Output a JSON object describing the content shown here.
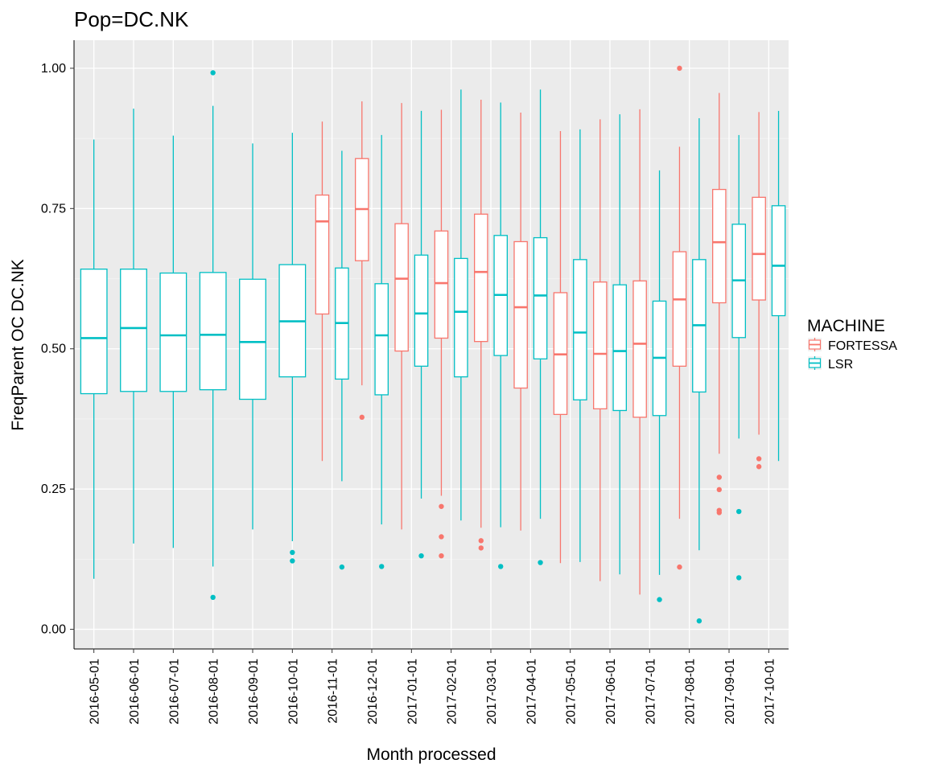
{
  "chart_data": {
    "type": "boxplot",
    "title": "Pop=DC.NK",
    "xlabel": "Month processed",
    "ylabel": "FreqParent OC  DC.NK",
    "ylim": [
      -0.035,
      1.05
    ],
    "yticks": [
      0.0,
      0.25,
      0.5,
      0.75,
      1.0
    ],
    "ytick_labels": [
      "0.00",
      "0.25",
      "0.50",
      "0.75",
      "1.00"
    ],
    "grid": true,
    "legend": {
      "title": "MACHINE",
      "position": "right",
      "entries": [
        {
          "name": "FORTESSA",
          "color": "#F8766D"
        },
        {
          "name": "LSR",
          "color": "#00BFC4"
        }
      ]
    },
    "categories": [
      "2016-05-01",
      "2016-06-01",
      "2016-07-01",
      "2016-08-01",
      "2016-09-01",
      "2016-10-01",
      "2016-11-01",
      "2016-12-01",
      "2017-01-01",
      "2017-02-01",
      "2017-03-01",
      "2017-04-01",
      "2017-05-01",
      "2017-06-01",
      "2017-07-01",
      "2017-08-01",
      "2017-09-01",
      "2017-10-01"
    ],
    "series": [
      {
        "name": "FORTESSA",
        "color": "#F8766D",
        "boxes": [
          {
            "category": "2016-11-01",
            "min": 0.3,
            "q1": 0.562,
            "median": 0.727,
            "q3": 0.774,
            "max": 0.905,
            "outliers": []
          },
          {
            "category": "2016-12-01",
            "min": 0.435,
            "q1": 0.657,
            "median": 0.749,
            "q3": 0.839,
            "max": 0.941,
            "outliers": [
              0.378
            ]
          },
          {
            "category": "2017-01-01",
            "min": 0.178,
            "q1": 0.496,
            "median": 0.625,
            "q3": 0.723,
            "max": 0.938,
            "outliers": []
          },
          {
            "category": "2017-02-01",
            "min": 0.238,
            "q1": 0.519,
            "median": 0.617,
            "q3": 0.71,
            "max": 0.926,
            "outliers": [
              0.219,
              0.165,
              0.131
            ]
          },
          {
            "category": "2017-03-01",
            "min": 0.181,
            "q1": 0.513,
            "median": 0.637,
            "q3": 0.74,
            "max": 0.944,
            "outliers": [
              0.158,
              0.145
            ]
          },
          {
            "category": "2017-04-01",
            "min": 0.176,
            "q1": 0.43,
            "median": 0.574,
            "q3": 0.691,
            "max": 0.921,
            "outliers": []
          },
          {
            "category": "2017-05-01",
            "min": 0.118,
            "q1": 0.383,
            "median": 0.49,
            "q3": 0.6,
            "max": 0.888,
            "outliers": []
          },
          {
            "category": "2017-06-01",
            "min": 0.086,
            "q1": 0.393,
            "median": 0.491,
            "q3": 0.619,
            "max": 0.909,
            "outliers": []
          },
          {
            "category": "2017-07-01",
            "min": 0.062,
            "q1": 0.378,
            "median": 0.509,
            "q3": 0.621,
            "max": 0.927,
            "outliers": []
          },
          {
            "category": "2017-08-01",
            "min": 0.197,
            "q1": 0.469,
            "median": 0.588,
            "q3": 0.673,
            "max": 0.86,
            "outliers": [
              1.0,
              0.111
            ]
          },
          {
            "category": "2017-09-01",
            "min": 0.313,
            "q1": 0.582,
            "median": 0.69,
            "q3": 0.784,
            "max": 0.956,
            "outliers": [
              0.271,
              0.249,
              0.212,
              0.208
            ]
          },
          {
            "category": "2017-10-01",
            "min": 0.347,
            "q1": 0.587,
            "median": 0.669,
            "q3": 0.77,
            "max": 0.922,
            "outliers": [
              0.304,
              0.29
            ]
          }
        ]
      },
      {
        "name": "LSR",
        "color": "#00BFC4",
        "boxes": [
          {
            "category": "2016-05-01",
            "min": 0.09,
            "q1": 0.42,
            "median": 0.519,
            "q3": 0.642,
            "max": 0.873,
            "outliers": []
          },
          {
            "category": "2016-06-01",
            "min": 0.153,
            "q1": 0.424,
            "median": 0.537,
            "q3": 0.642,
            "max": 0.928,
            "outliers": []
          },
          {
            "category": "2016-07-01",
            "min": 0.145,
            "q1": 0.424,
            "median": 0.524,
            "q3": 0.635,
            "max": 0.88,
            "outliers": []
          },
          {
            "category": "2016-08-01",
            "min": 0.112,
            "q1": 0.427,
            "median": 0.525,
            "q3": 0.636,
            "max": 0.933,
            "outliers": [
              0.992,
              0.057
            ]
          },
          {
            "category": "2016-09-01",
            "min": 0.178,
            "q1": 0.41,
            "median": 0.512,
            "q3": 0.624,
            "max": 0.866,
            "outliers": []
          },
          {
            "category": "2016-10-01",
            "min": 0.157,
            "q1": 0.45,
            "median": 0.549,
            "q3": 0.65,
            "max": 0.885,
            "outliers": [
              0.137,
              0.122
            ]
          },
          {
            "category": "2016-11-01",
            "min": 0.264,
            "q1": 0.446,
            "median": 0.546,
            "q3": 0.644,
            "max": 0.853,
            "outliers": [
              0.111
            ]
          },
          {
            "category": "2016-12-01",
            "min": 0.187,
            "q1": 0.418,
            "median": 0.524,
            "q3": 0.616,
            "max": 0.881,
            "outliers": [
              0.112
            ]
          },
          {
            "category": "2017-01-01",
            "min": 0.233,
            "q1": 0.469,
            "median": 0.563,
            "q3": 0.667,
            "max": 0.924,
            "outliers": [
              0.131
            ]
          },
          {
            "category": "2017-02-01",
            "min": 0.194,
            "q1": 0.45,
            "median": 0.566,
            "q3": 0.661,
            "max": 0.962,
            "outliers": []
          },
          {
            "category": "2017-03-01",
            "min": 0.182,
            "q1": 0.488,
            "median": 0.596,
            "q3": 0.702,
            "max": 0.939,
            "outliers": [
              0.112
            ]
          },
          {
            "category": "2017-04-01",
            "min": 0.197,
            "q1": 0.482,
            "median": 0.595,
            "q3": 0.698,
            "max": 0.962,
            "outliers": [
              0.119
            ]
          },
          {
            "category": "2017-05-01",
            "min": 0.12,
            "q1": 0.409,
            "median": 0.529,
            "q3": 0.659,
            "max": 0.891,
            "outliers": []
          },
          {
            "category": "2017-06-01",
            "min": 0.098,
            "q1": 0.39,
            "median": 0.496,
            "q3": 0.614,
            "max": 0.918,
            "outliers": []
          },
          {
            "category": "2017-07-01",
            "min": 0.097,
            "q1": 0.381,
            "median": 0.484,
            "q3": 0.585,
            "max": 0.818,
            "outliers": [
              0.053
            ]
          },
          {
            "category": "2017-08-01",
            "min": 0.141,
            "q1": 0.423,
            "median": 0.542,
            "q3": 0.659,
            "max": 0.911,
            "outliers": [
              0.015
            ]
          },
          {
            "category": "2017-09-01",
            "min": 0.34,
            "q1": 0.52,
            "median": 0.622,
            "q3": 0.722,
            "max": 0.881,
            "outliers": [
              0.21,
              0.092
            ]
          },
          {
            "category": "2017-10-01",
            "min": 0.3,
            "q1": 0.559,
            "median": 0.648,
            "q3": 0.755,
            "max": 0.924,
            "outliers": []
          }
        ]
      }
    ]
  }
}
